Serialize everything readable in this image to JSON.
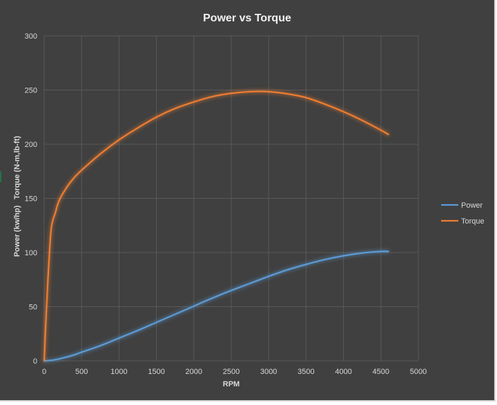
{
  "chart_data": {
    "type": "line",
    "title": "Power vs Torque",
    "xlabel": "RPM",
    "ylabel_lines": [
      "Power (kw/hp)",
      "Torque (N-m,lb-ft)"
    ],
    "xlim": [
      0,
      5000
    ],
    "ylim": [
      0,
      300
    ],
    "x_ticks": [
      "0",
      "500",
      "1000",
      "1500",
      "2000",
      "2500",
      "3000",
      "3500",
      "4000",
      "4500",
      "5000"
    ],
    "y_ticks": [
      "0",
      "50",
      "100",
      "150",
      "200",
      "250",
      "300"
    ],
    "grid": true,
    "legend_position": "right",
    "series": [
      {
        "name": "Power",
        "color": "#5b9bd5",
        "points": [
          [
            0,
            0
          ],
          [
            100,
            0.5
          ],
          [
            200,
            1.8
          ],
          [
            300,
            3.5
          ],
          [
            400,
            5.5
          ],
          [
            500,
            8
          ],
          [
            750,
            14
          ],
          [
            1000,
            21
          ],
          [
            1250,
            28
          ],
          [
            1500,
            35.5
          ],
          [
            1750,
            43
          ],
          [
            2000,
            50.5
          ],
          [
            2250,
            58
          ],
          [
            2500,
            65
          ],
          [
            2750,
            71.5
          ],
          [
            3000,
            78
          ],
          [
            3250,
            84
          ],
          [
            3500,
            89
          ],
          [
            3750,
            93.5
          ],
          [
            4000,
            97
          ],
          [
            4250,
            99.5
          ],
          [
            4500,
            101
          ],
          [
            4600,
            101
          ]
        ]
      },
      {
        "name": "Torque",
        "color": "#ed7d31",
        "points": [
          [
            0,
            0
          ],
          [
            25,
            40
          ],
          [
            50,
            75
          ],
          [
            75,
            105
          ],
          [
            100,
            125
          ],
          [
            150,
            137
          ],
          [
            200,
            148
          ],
          [
            300,
            160
          ],
          [
            400,
            169
          ],
          [
            500,
            176
          ],
          [
            750,
            191
          ],
          [
            1000,
            204
          ],
          [
            1250,
            215
          ],
          [
            1500,
            225
          ],
          [
            1750,
            233
          ],
          [
            2000,
            239
          ],
          [
            2250,
            244
          ],
          [
            2500,
            247
          ],
          [
            2750,
            248.5
          ],
          [
            3000,
            248.5
          ],
          [
            3250,
            246.5
          ],
          [
            3500,
            243
          ],
          [
            3750,
            237
          ],
          [
            4000,
            230
          ],
          [
            4250,
            222
          ],
          [
            4500,
            213
          ],
          [
            4600,
            209
          ]
        ]
      }
    ]
  }
}
